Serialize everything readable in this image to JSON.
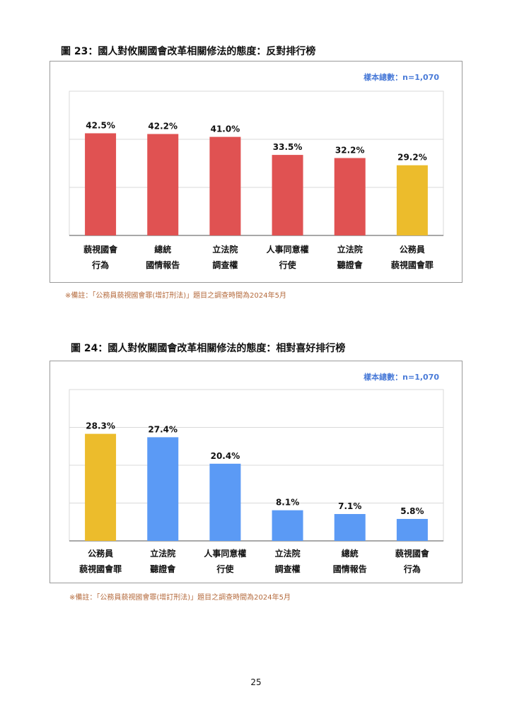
{
  "figure23": {
    "title": "圖 23：國人對攸關國會改革相關修法的態度：反對排行榜",
    "sample": "樣本總數：n=1,070",
    "note": "※備註：「公務員藐視國會罪(增訂刑法)」題目之調查時間為2024年5月"
  },
  "figure24": {
    "title": "圖 24：國人對攸關國會改革相關修法的態度：相對喜好排行榜",
    "sample": "樣本總數：n=1,070",
    "note": "※備註：「公務員藐視國會罪(增訂刑法)」題目之調查時間為2024年5月"
  },
  "page_number": "25",
  "chart_data": [
    {
      "type": "bar",
      "categories": [
        [
          "藐視國會",
          "行為"
        ],
        [
          "總統",
          "國情報告"
        ],
        [
          "立法院",
          "調查權"
        ],
        [
          "人事同意權",
          "行使"
        ],
        [
          "立法院",
          "聽證會"
        ],
        [
          "公務員",
          "藐視國會罪"
        ]
      ],
      "values": [
        42.5,
        42.2,
        41.0,
        33.5,
        32.2,
        29.2
      ],
      "data_labels": [
        "42.5%",
        "42.2%",
        "41.0%",
        "33.5%",
        "32.2%",
        "29.2%"
      ],
      "colors": [
        "#e05252",
        "#e05252",
        "#e05252",
        "#e05252",
        "#e05252",
        "#ecbc2c"
      ],
      "ylim": [
        0,
        60
      ],
      "gridlines": [
        20,
        40,
        60
      ],
      "grid": true
    },
    {
      "type": "bar",
      "categories": [
        [
          "公務員",
          "藐視國會罪"
        ],
        [
          "立法院",
          "聽證會"
        ],
        [
          "人事同意權",
          "行使"
        ],
        [
          "立法院",
          "調查權"
        ],
        [
          "總統",
          "國情報告"
        ],
        [
          "藐視國會",
          "行為"
        ]
      ],
      "values": [
        28.3,
        27.4,
        20.4,
        8.1,
        7.1,
        5.8
      ],
      "data_labels": [
        "28.3%",
        "27.4%",
        "20.4%",
        "8.1%",
        "7.1%",
        "5.8%"
      ],
      "colors": [
        "#ecbc2c",
        "#5b9af5",
        "#5b9af5",
        "#5b9af5",
        "#5b9af5",
        "#5b9af5"
      ],
      "ylim": [
        0,
        40
      ],
      "gridlines": [
        10,
        20,
        30,
        40
      ],
      "grid": true
    }
  ]
}
